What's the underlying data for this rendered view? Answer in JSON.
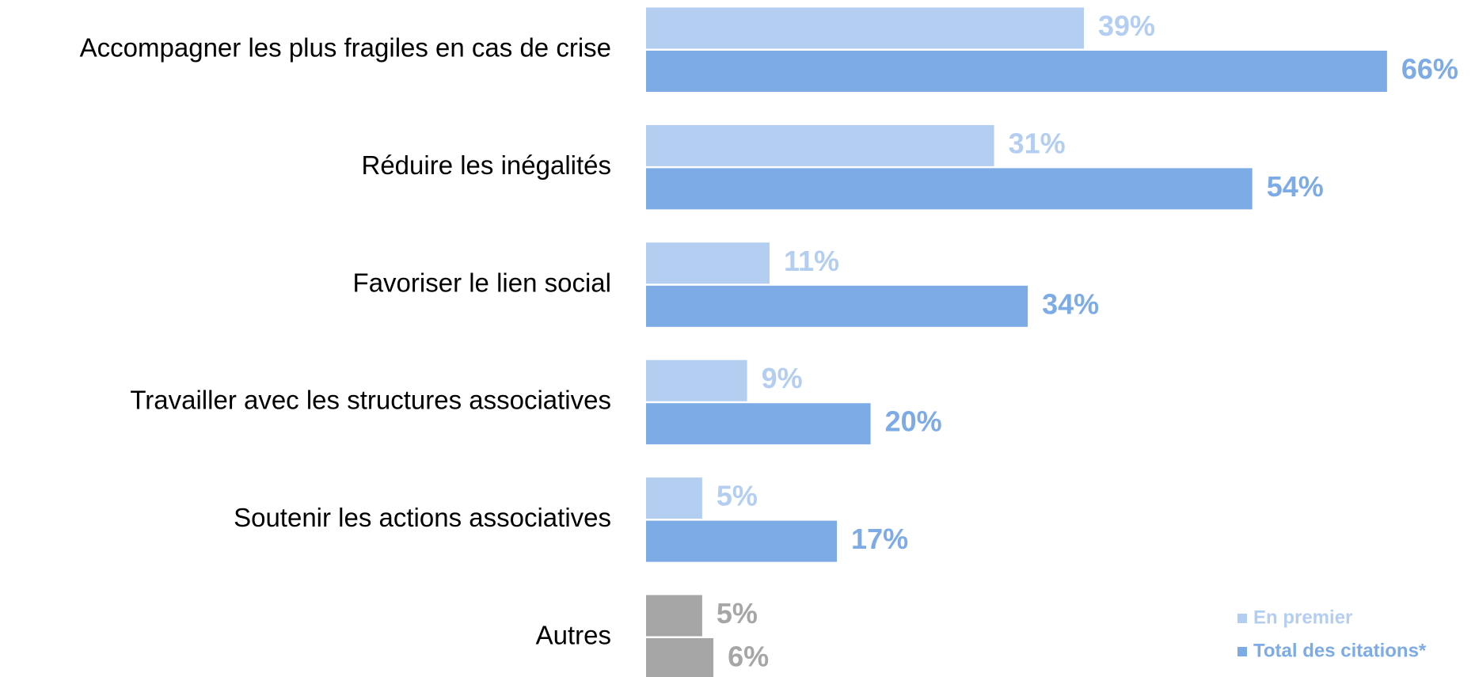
{
  "chart_data": {
    "type": "bar",
    "orientation": "horizontal",
    "categories": [
      "Accompagner les plus fragiles en cas de crise",
      "Réduire les inégalités",
      "Favoriser le lien social",
      "Travailler avec les structures associatives",
      "Soutenir les actions associatives",
      "Autres"
    ],
    "series": [
      {
        "name": "En premier",
        "color": "#b4cef2",
        "colors": [
          "#b4cef2",
          "#b4cef2",
          "#b4cef2",
          "#b4cef2",
          "#b4cef2",
          "#a6a6a6"
        ],
        "values": [
          39,
          31,
          11,
          9,
          5,
          5
        ],
        "value_labels": [
          "39%",
          "31%",
          "11%",
          "9%",
          "5%",
          "5%"
        ]
      },
      {
        "name": "Total des citations*",
        "color": "#7dabe6",
        "colors": [
          "#7dabe6",
          "#7dabe6",
          "#7dabe6",
          "#7dabe6",
          "#7dabe6",
          "#a6a6a6"
        ],
        "values": [
          66,
          54,
          34,
          20,
          17,
          6
        ],
        "value_labels": [
          "66%",
          "54%",
          "34%",
          "20%",
          "17%",
          "6%"
        ]
      }
    ],
    "legend": "bottom-right"
  }
}
